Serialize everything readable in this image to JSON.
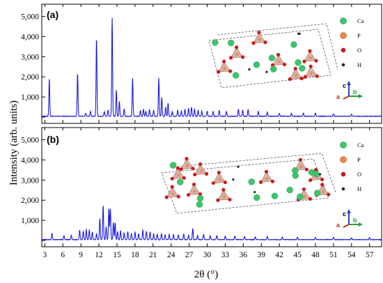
{
  "chart_data": [
    {
      "type": "line",
      "panel_label": "(a)",
      "xlabel": "2θ (°)",
      "ylabel": "Intensity (arb. units)",
      "xlim": [
        2.5,
        59
      ],
      "ylim": [
        0,
        5400
      ],
      "x_ticks": [
        3,
        6,
        9,
        12,
        15,
        18,
        21,
        24,
        27,
        30,
        33,
        36,
        39,
        42,
        45,
        48,
        51,
        54,
        57
      ],
      "y_ticks": [
        1000,
        2000,
        3000,
        4000,
        5000
      ],
      "y_tick_labels": [
        "1,000",
        "2,000",
        "3,000",
        "4,000",
        "5,000"
      ],
      "line_color": "#1a1adb",
      "grid": false,
      "peaks": [
        [
          3.75,
          1850
        ],
        [
          8.45,
          2150
        ],
        [
          11.6,
          3900
        ],
        [
          14.2,
          4900
        ],
        [
          14.9,
          1300
        ],
        [
          15.4,
          750
        ],
        [
          17.6,
          1900
        ],
        [
          21.95,
          1900
        ],
        [
          22.45,
          950
        ],
        [
          23.5,
          650
        ],
        [
          9.8,
          150
        ],
        [
          10.6,
          250
        ],
        [
          12.9,
          250
        ],
        [
          13.5,
          300
        ],
        [
          16.2,
          350
        ],
        [
          18.9,
          300
        ],
        [
          19.4,
          350
        ],
        [
          19.8,
          250
        ],
        [
          20.4,
          350
        ],
        [
          21.1,
          300
        ],
        [
          23.1,
          450
        ],
        [
          24.2,
          250
        ],
        [
          25.1,
          300
        ],
        [
          25.7,
          250
        ],
        [
          26.3,
          350
        ],
        [
          26.9,
          400
        ],
        [
          27.4,
          450
        ],
        [
          27.9,
          350
        ],
        [
          28.5,
          300
        ],
        [
          29.1,
          250
        ],
        [
          30.0,
          250
        ],
        [
          31.0,
          250
        ],
        [
          32.0,
          300
        ],
        [
          33.2,
          250
        ],
        [
          35.2,
          350
        ],
        [
          35.9,
          300
        ],
        [
          36.8,
          350
        ],
        [
          38.5,
          250
        ],
        [
          40.0,
          200
        ],
        [
          42.0,
          150
        ],
        [
          44.0,
          150
        ],
        [
          46.0,
          150
        ],
        [
          48.0,
          150
        ],
        [
          51.0,
          120
        ],
        [
          54.0,
          100
        ]
      ],
      "legend": [
        {
          "label": "Ca",
          "color": "#3ec46d"
        },
        {
          "label": "P",
          "color": "#e8874a"
        },
        {
          "label": "O",
          "color": "#cc1a1a"
        },
        {
          "label": "H",
          "color": "#222222"
        }
      ],
      "axes_labels": [
        "c",
        "a",
        "b"
      ]
    },
    {
      "type": "line",
      "panel_label": "(b)",
      "xlabel": "2θ (°)",
      "ylabel": "Intensity (arb. units)",
      "xlim": [
        2.5,
        59
      ],
      "ylim": [
        0,
        5400
      ],
      "x_ticks": [
        3,
        6,
        9,
        12,
        15,
        18,
        21,
        24,
        27,
        30,
        33,
        36,
        39,
        42,
        45,
        48,
        51,
        54,
        57
      ],
      "x_tick_labels": [
        "3",
        "6",
        "9",
        "12",
        "15",
        "18",
        "21",
        "24",
        "27",
        "30",
        "33",
        "36",
        "39",
        "42",
        "45",
        "48",
        "51",
        "54",
        "57"
      ],
      "y_ticks": [
        1000,
        2000,
        3000,
        4000,
        5000
      ],
      "y_tick_labels": [
        "1,000",
        "2,000",
        "3,000",
        "4,000",
        "5,000"
      ],
      "line_color": "#1a1adb",
      "grid": false,
      "peaks": [
        [
          4.2,
          300
        ],
        [
          6.2,
          200
        ],
        [
          7.4,
          220
        ],
        [
          8.8,
          480
        ],
        [
          9.4,
          420
        ],
        [
          9.9,
          520
        ],
        [
          10.4,
          480
        ],
        [
          10.9,
          380
        ],
        [
          11.6,
          300
        ],
        [
          12.15,
          1050
        ],
        [
          12.7,
          1700
        ],
        [
          13.2,
          650
        ],
        [
          13.65,
          1550
        ],
        [
          13.9,
          1550
        ],
        [
          14.4,
          850
        ],
        [
          14.7,
          850
        ],
        [
          15.1,
          400
        ],
        [
          15.6,
          450
        ],
        [
          16.2,
          350
        ],
        [
          16.8,
          400
        ],
        [
          17.4,
          300
        ],
        [
          18.0,
          380
        ],
        [
          18.6,
          300
        ],
        [
          19.3,
          480
        ],
        [
          19.9,
          420
        ],
        [
          20.5,
          380
        ],
        [
          21.1,
          300
        ],
        [
          21.7,
          280
        ],
        [
          22.4,
          300
        ],
        [
          23.0,
          250
        ],
        [
          23.7,
          260
        ],
        [
          24.4,
          260
        ],
        [
          25.2,
          250
        ],
        [
          26.1,
          280
        ],
        [
          26.9,
          220
        ],
        [
          27.6,
          550
        ],
        [
          28.4,
          220
        ],
        [
          29.4,
          260
        ],
        [
          30.5,
          200
        ],
        [
          31.6,
          200
        ],
        [
          33.0,
          180
        ],
        [
          34.6,
          180
        ],
        [
          36.2,
          160
        ],
        [
          38.0,
          150
        ],
        [
          40.0,
          150
        ],
        [
          42.5,
          130
        ],
        [
          45.0,
          130
        ],
        [
          48.0,
          110
        ],
        [
          51.0,
          110
        ],
        [
          54.0,
          100
        ],
        [
          57.0,
          100
        ]
      ],
      "legend": [
        {
          "label": "Ca",
          "color": "#3ec46d"
        },
        {
          "label": "P",
          "color": "#e8874a"
        },
        {
          "label": "O",
          "color": "#cc1a1a"
        },
        {
          "label": "H",
          "color": "#222222"
        }
      ],
      "axes_labels": [
        "c",
        "a",
        "b"
      ]
    }
  ]
}
